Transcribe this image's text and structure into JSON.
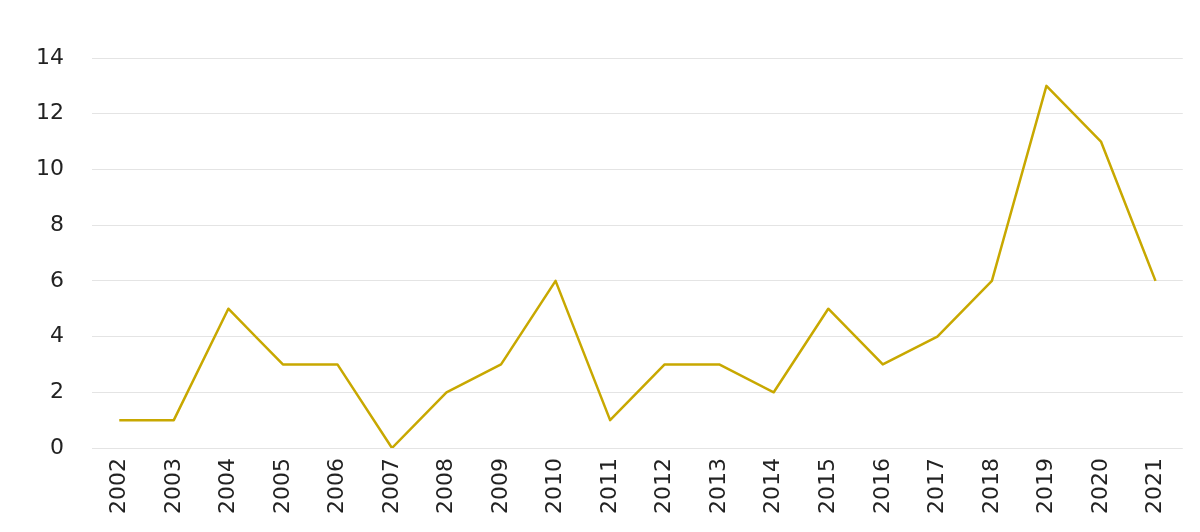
{
  "chart_data": {
    "type": "line",
    "categories": [
      "2002",
      "2003",
      "2004",
      "2005",
      "2006",
      "2007",
      "2008",
      "2009",
      "2010",
      "2011",
      "2012",
      "2013",
      "2014",
      "2015",
      "2016",
      "2017",
      "2018",
      "2019",
      "2020",
      "2021"
    ],
    "series": [
      {
        "color": "#c8a800",
        "values": [
          1,
          1,
          5,
          3,
          3,
          0,
          2,
          3,
          6,
          1,
          3,
          3,
          2,
          5,
          3,
          4,
          6,
          13,
          11,
          6
        ]
      }
    ],
    "ylim": [
      0,
      14
    ],
    "yticks": [
      0,
      2,
      4,
      6,
      8,
      10,
      12,
      14
    ],
    "grid": "y",
    "legend": false,
    "marker": "none",
    "line_style": "solid"
  }
}
